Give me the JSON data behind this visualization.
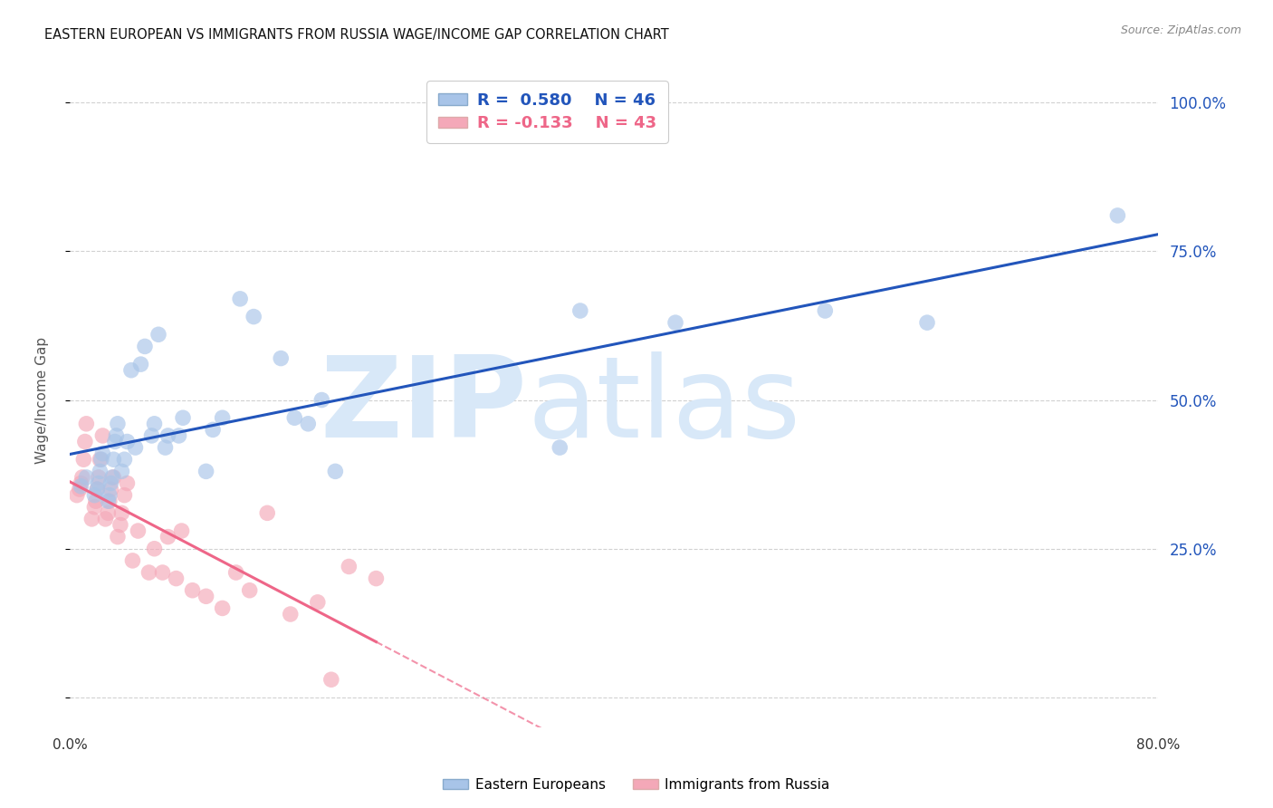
{
  "title": "EASTERN EUROPEAN VS IMMIGRANTS FROM RUSSIA WAGE/INCOME GAP CORRELATION CHART",
  "source": "Source: ZipAtlas.com",
  "ylabel": "Wage/Income Gap",
  "xmin": 0.0,
  "xmax": 0.8,
  "ymin": -0.05,
  "ymax": 1.05,
  "yticks": [
    0.0,
    0.25,
    0.5,
    0.75,
    1.0
  ],
  "ytick_labels": [
    "",
    "25.0%",
    "50.0%",
    "75.0%",
    "100.0%"
  ],
  "xticks": [
    0.0,
    0.2,
    0.4,
    0.6,
    0.8
  ],
  "xtick_labels": [
    "0.0%",
    "",
    "",
    "",
    "80.0%"
  ],
  "blue_R": 0.58,
  "blue_N": 46,
  "pink_R": -0.133,
  "pink_N": 43,
  "blue_scatter_x": [
    0.008,
    0.012,
    0.018,
    0.02,
    0.021,
    0.022,
    0.023,
    0.024,
    0.028,
    0.029,
    0.03,
    0.031,
    0.032,
    0.033,
    0.034,
    0.035,
    0.038,
    0.04,
    0.042,
    0.045,
    0.048,
    0.052,
    0.055,
    0.06,
    0.062,
    0.065,
    0.07,
    0.072,
    0.08,
    0.083,
    0.1,
    0.105,
    0.112,
    0.125,
    0.135,
    0.155,
    0.165,
    0.175,
    0.185,
    0.195,
    0.36,
    0.375,
    0.445,
    0.555,
    0.63,
    0.77
  ],
  "blue_scatter_y": [
    0.355,
    0.37,
    0.34,
    0.35,
    0.36,
    0.38,
    0.4,
    0.41,
    0.33,
    0.34,
    0.36,
    0.37,
    0.4,
    0.43,
    0.44,
    0.46,
    0.38,
    0.4,
    0.43,
    0.55,
    0.42,
    0.56,
    0.59,
    0.44,
    0.46,
    0.61,
    0.42,
    0.44,
    0.44,
    0.47,
    0.38,
    0.45,
    0.47,
    0.67,
    0.64,
    0.57,
    0.47,
    0.46,
    0.5,
    0.38,
    0.42,
    0.65,
    0.63,
    0.65,
    0.63,
    0.81
  ],
  "pink_scatter_x": [
    0.005,
    0.007,
    0.008,
    0.009,
    0.01,
    0.011,
    0.012,
    0.016,
    0.018,
    0.019,
    0.02,
    0.021,
    0.022,
    0.024,
    0.026,
    0.028,
    0.029,
    0.03,
    0.032,
    0.035,
    0.037,
    0.038,
    0.04,
    0.042,
    0.046,
    0.05,
    0.058,
    0.062,
    0.068,
    0.072,
    0.078,
    0.082,
    0.09,
    0.1,
    0.112,
    0.122,
    0.132,
    0.145,
    0.162,
    0.182,
    0.192,
    0.205,
    0.225
  ],
  "pink_scatter_y": [
    0.34,
    0.35,
    0.36,
    0.37,
    0.4,
    0.43,
    0.46,
    0.3,
    0.32,
    0.33,
    0.35,
    0.37,
    0.4,
    0.44,
    0.3,
    0.31,
    0.33,
    0.35,
    0.37,
    0.27,
    0.29,
    0.31,
    0.34,
    0.36,
    0.23,
    0.28,
    0.21,
    0.25,
    0.21,
    0.27,
    0.2,
    0.28,
    0.18,
    0.17,
    0.15,
    0.21,
    0.18,
    0.31,
    0.14,
    0.16,
    0.03,
    0.22,
    0.2
  ],
  "blue_color": "#A8C4E8",
  "pink_color": "#F4A8B8",
  "blue_line_color": "#2255BB",
  "pink_line_color": "#EE6688",
  "background_color": "#FFFFFF",
  "grid_color": "#CCCCCC",
  "watermark_zip": "ZIP",
  "watermark_atlas": "atlas",
  "watermark_color": "#D8E8F8"
}
